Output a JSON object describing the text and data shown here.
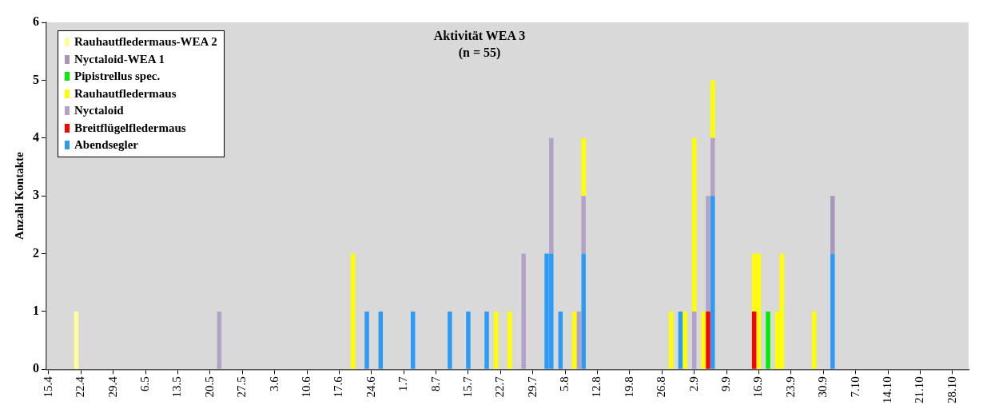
{
  "chart_data": {
    "type": "bar",
    "title": "Aktivität WEA 3",
    "subtitle": "(n = 55)",
    "ylabel": "Anzahl Kontakte",
    "stacked": true,
    "grid": false,
    "legend": "top left",
    "ylim": [
      0,
      6
    ],
    "yticks": [
      0,
      1,
      2,
      3,
      4,
      5,
      6
    ],
    "categories": [
      "15.4",
      null,
      null,
      null,
      null,
      null,
      null,
      "22.4",
      null,
      null,
      null,
      null,
      null,
      null,
      "29.4",
      null,
      null,
      null,
      null,
      null,
      null,
      "6.5",
      null,
      null,
      null,
      null,
      null,
      null,
      "13.5",
      null,
      null,
      null,
      null,
      null,
      null,
      "20.5",
      null,
      null,
      null,
      null,
      null,
      null,
      "27.5",
      null,
      null,
      null,
      null,
      null,
      null,
      "3.6",
      null,
      null,
      null,
      null,
      null,
      null,
      "10.6",
      null,
      null,
      null,
      null,
      null,
      null,
      "17.6",
      null,
      null,
      null,
      null,
      null,
      null,
      "24.6",
      null,
      null,
      null,
      null,
      null,
      null,
      "1.7",
      null,
      null,
      null,
      null,
      null,
      null,
      "8.7",
      null,
      null,
      null,
      null,
      null,
      null,
      "15.7",
      null,
      null,
      null,
      null,
      null,
      null,
      "22.7",
      null,
      null,
      null,
      null,
      null,
      null,
      "29.7",
      null,
      null,
      null,
      null,
      null,
      null,
      "5.8",
      null,
      null,
      null,
      null,
      null,
      null,
      "12.8",
      null,
      null,
      null,
      null,
      null,
      null,
      "19.8",
      null,
      null,
      null,
      null,
      null,
      null,
      "26.8",
      null,
      null,
      null,
      null,
      null,
      null,
      "2.9",
      null,
      null,
      null,
      null,
      null,
      null,
      "9.9",
      null,
      null,
      null,
      null,
      null,
      null,
      "16.9",
      null,
      null,
      null,
      null,
      null,
      null,
      "23.9",
      null,
      null,
      null,
      null,
      null,
      null,
      "30.9",
      null,
      null,
      null,
      null,
      null,
      null,
      "7.10",
      null,
      null,
      null,
      null,
      null,
      null,
      "14.10",
      null,
      null,
      null,
      null,
      null,
      null,
      "21.10",
      null,
      null,
      null,
      null,
      null,
      null,
      "28.10",
      null,
      null,
      null
    ],
    "series": [
      {
        "name": "Abendsegler",
        "color": "#2c9bf5",
        "values": [
          null,
          null,
          null,
          null,
          null,
          null,
          null,
          null,
          null,
          null,
          null,
          null,
          null,
          null,
          null,
          null,
          null,
          null,
          null,
          null,
          null,
          null,
          null,
          null,
          null,
          null,
          null,
          null,
          null,
          null,
          null,
          null,
          null,
          null,
          null,
          null,
          null,
          null,
          null,
          null,
          null,
          null,
          null,
          null,
          null,
          null,
          null,
          null,
          null,
          null,
          null,
          null,
          null,
          null,
          null,
          null,
          null,
          null,
          null,
          null,
          null,
          null,
          null,
          null,
          null,
          null,
          null,
          null,
          null,
          1,
          null,
          null,
          1,
          null,
          null,
          null,
          null,
          null,
          null,
          1,
          null,
          null,
          null,
          null,
          null,
          null,
          null,
          1,
          null,
          null,
          null,
          1,
          null,
          null,
          null,
          1,
          null,
          null,
          null,
          null,
          null,
          null,
          null,
          null,
          null,
          null,
          null,
          null,
          2,
          2,
          null,
          1,
          null,
          null,
          null,
          null,
          2,
          null,
          null,
          null,
          null,
          null,
          null,
          null,
          null,
          null,
          null,
          null,
          null,
          null,
          null,
          null,
          null,
          null,
          null,
          null,
          null,
          1,
          null,
          null,
          null,
          null,
          null,
          null,
          3,
          null,
          null,
          null,
          null,
          null,
          null,
          null,
          null,
          null,
          null,
          null,
          null,
          null,
          null,
          null,
          null,
          null,
          null,
          null,
          null,
          null,
          null,
          null,
          null,
          null,
          2,
          null,
          null,
          null,
          null,
          null,
          null,
          null,
          null,
          null,
          null,
          null,
          null,
          null,
          null,
          null,
          null,
          null,
          null,
          null,
          null,
          null,
          null,
          null,
          null,
          null,
          null,
          null,
          null,
          null
        ]
      },
      {
        "name": "Breitflügelfledermaus",
        "color": "#ff0000",
        "values": [
          null,
          null,
          null,
          null,
          null,
          null,
          null,
          null,
          null,
          null,
          null,
          null,
          null,
          null,
          null,
          null,
          null,
          null,
          null,
          null,
          null,
          null,
          null,
          null,
          null,
          null,
          null,
          null,
          null,
          null,
          null,
          null,
          null,
          null,
          null,
          null,
          null,
          null,
          null,
          null,
          null,
          null,
          null,
          null,
          null,
          null,
          null,
          null,
          null,
          null,
          null,
          null,
          null,
          null,
          null,
          null,
          null,
          null,
          null,
          null,
          null,
          null,
          null,
          null,
          null,
          null,
          null,
          null,
          null,
          null,
          null,
          null,
          null,
          null,
          null,
          null,
          null,
          null,
          null,
          null,
          null,
          null,
          null,
          null,
          null,
          null,
          null,
          null,
          null,
          null,
          null,
          null,
          null,
          null,
          null,
          null,
          null,
          null,
          null,
          null,
          null,
          null,
          null,
          null,
          null,
          null,
          null,
          null,
          null,
          null,
          null,
          null,
          null,
          null,
          null,
          null,
          null,
          null,
          null,
          null,
          null,
          null,
          null,
          null,
          null,
          null,
          null,
          null,
          null,
          null,
          null,
          null,
          null,
          null,
          null,
          null,
          null,
          null,
          null,
          null,
          null,
          null,
          null,
          1,
          null,
          null,
          null,
          null,
          null,
          null,
          null,
          null,
          null,
          1,
          null,
          null,
          null,
          null,
          null,
          null,
          null,
          null,
          null,
          null,
          null,
          null,
          null,
          null,
          null,
          null,
          null,
          null,
          null,
          null,
          null,
          null,
          null,
          null,
          null,
          null,
          null,
          null,
          null,
          null,
          null,
          null,
          null,
          null,
          null,
          null,
          null,
          null,
          null,
          null,
          null,
          null,
          null,
          null,
          null,
          null
        ]
      },
      {
        "name": "Nyctaloid",
        "color": "#b3a2c7",
        "values": [
          null,
          null,
          null,
          null,
          null,
          null,
          null,
          null,
          null,
          null,
          null,
          null,
          null,
          null,
          null,
          null,
          null,
          null,
          null,
          null,
          null,
          null,
          null,
          null,
          null,
          null,
          null,
          null,
          null,
          null,
          null,
          null,
          null,
          null,
          null,
          null,
          null,
          1,
          null,
          null,
          null,
          null,
          null,
          null,
          null,
          null,
          null,
          null,
          null,
          null,
          null,
          null,
          null,
          null,
          null,
          null,
          null,
          null,
          null,
          null,
          null,
          null,
          null,
          null,
          null,
          null,
          null,
          null,
          null,
          null,
          null,
          null,
          null,
          null,
          null,
          null,
          null,
          null,
          null,
          null,
          null,
          null,
          null,
          null,
          null,
          null,
          null,
          null,
          null,
          null,
          null,
          null,
          null,
          null,
          null,
          null,
          null,
          null,
          null,
          null,
          null,
          null,
          null,
          2,
          null,
          null,
          null,
          null,
          null,
          2,
          null,
          null,
          null,
          null,
          null,
          1,
          1,
          null,
          null,
          null,
          null,
          null,
          null,
          null,
          null,
          null,
          null,
          null,
          null,
          null,
          null,
          null,
          null,
          null,
          null,
          null,
          null,
          null,
          null,
          null,
          1,
          null,
          null,
          2,
          1,
          null,
          null,
          null,
          null,
          null,
          null,
          null,
          null,
          null,
          null,
          null,
          null,
          null,
          null,
          null,
          null,
          null,
          null,
          null,
          null,
          null,
          null,
          null,
          null,
          null,
          null,
          null,
          null,
          null,
          null,
          null,
          null,
          null,
          null,
          null,
          null,
          null,
          null,
          null,
          null,
          null,
          null,
          null,
          null,
          null,
          null,
          null,
          null,
          null,
          null,
          null,
          null,
          null,
          null,
          null
        ]
      },
      {
        "name": "Rauhautfledermaus",
        "color": "#ffff00",
        "values": [
          null,
          null,
          null,
          null,
          null,
          null,
          null,
          null,
          null,
          null,
          null,
          null,
          null,
          null,
          null,
          null,
          null,
          null,
          null,
          null,
          null,
          null,
          null,
          null,
          null,
          null,
          null,
          null,
          null,
          null,
          null,
          null,
          null,
          null,
          null,
          null,
          null,
          null,
          null,
          null,
          null,
          null,
          null,
          null,
          null,
          null,
          null,
          null,
          null,
          null,
          null,
          null,
          null,
          null,
          null,
          null,
          null,
          null,
          null,
          null,
          null,
          null,
          null,
          null,
          null,
          null,
          2,
          null,
          null,
          null,
          null,
          null,
          null,
          null,
          null,
          null,
          null,
          null,
          null,
          null,
          null,
          null,
          null,
          null,
          null,
          null,
          null,
          null,
          null,
          null,
          null,
          null,
          null,
          null,
          null,
          null,
          null,
          1,
          null,
          null,
          1,
          null,
          null,
          null,
          null,
          null,
          null,
          null,
          null,
          null,
          null,
          null,
          null,
          null,
          1,
          null,
          1,
          null,
          null,
          null,
          null,
          null,
          null,
          null,
          null,
          null,
          null,
          null,
          null,
          null,
          null,
          null,
          null,
          null,
          null,
          1,
          null,
          null,
          1,
          null,
          3,
          null,
          1,
          null,
          1,
          null,
          null,
          null,
          null,
          null,
          null,
          null,
          null,
          1,
          2,
          null,
          null,
          null,
          1,
          2,
          null,
          null,
          null,
          null,
          null,
          null,
          1,
          null,
          null,
          null,
          null,
          null,
          null,
          null,
          null,
          null,
          null,
          null,
          null,
          null,
          null,
          null,
          null,
          null,
          null,
          null,
          null,
          null,
          null,
          null,
          null,
          null,
          null,
          null,
          null,
          null,
          null,
          null,
          null,
          null
        ]
      },
      {
        "name": "Pipistrellus spec.",
        "color": "#00ee00",
        "values": [
          null,
          null,
          null,
          null,
          null,
          null,
          null,
          null,
          null,
          null,
          null,
          null,
          null,
          null,
          null,
          null,
          null,
          null,
          null,
          null,
          null,
          null,
          null,
          null,
          null,
          null,
          null,
          null,
          null,
          null,
          null,
          null,
          null,
          null,
          null,
          null,
          null,
          null,
          null,
          null,
          null,
          null,
          null,
          null,
          null,
          null,
          null,
          null,
          null,
          null,
          null,
          null,
          null,
          null,
          null,
          null,
          null,
          null,
          null,
          null,
          null,
          null,
          null,
          null,
          null,
          null,
          null,
          null,
          null,
          null,
          null,
          null,
          null,
          null,
          null,
          null,
          null,
          null,
          null,
          null,
          null,
          null,
          null,
          null,
          null,
          null,
          null,
          null,
          null,
          null,
          null,
          null,
          null,
          null,
          null,
          null,
          null,
          null,
          null,
          null,
          null,
          null,
          null,
          null,
          null,
          null,
          null,
          null,
          null,
          null,
          null,
          null,
          null,
          null,
          null,
          null,
          null,
          null,
          null,
          null,
          null,
          null,
          null,
          null,
          null,
          null,
          null,
          null,
          null,
          null,
          null,
          null,
          null,
          null,
          null,
          null,
          null,
          null,
          null,
          null,
          null,
          null,
          null,
          null,
          null,
          null,
          null,
          null,
          null,
          null,
          null,
          null,
          null,
          null,
          null,
          null,
          1,
          null,
          null,
          null,
          null,
          null,
          null,
          null,
          null,
          null,
          null,
          null,
          null,
          null,
          null,
          null,
          null,
          null,
          null,
          null,
          null,
          null,
          null,
          null,
          null,
          null,
          null,
          null,
          null,
          null,
          null,
          null,
          null,
          null,
          null,
          null,
          null,
          null,
          null,
          null,
          null,
          null,
          null,
          null
        ]
      },
      {
        "name": "Nyctaloid-WEA 1",
        "color": "#a897bd",
        "values": [
          null,
          null,
          null,
          null,
          null,
          null,
          null,
          null,
          null,
          null,
          null,
          null,
          null,
          null,
          null,
          null,
          null,
          null,
          null,
          null,
          null,
          null,
          null,
          null,
          null,
          null,
          null,
          null,
          null,
          null,
          null,
          null,
          null,
          null,
          null,
          null,
          null,
          null,
          null,
          null,
          null,
          null,
          null,
          null,
          null,
          null,
          null,
          null,
          null,
          null,
          null,
          null,
          null,
          null,
          null,
          null,
          null,
          null,
          null,
          null,
          null,
          null,
          null,
          null,
          null,
          null,
          null,
          null,
          null,
          null,
          null,
          null,
          null,
          null,
          null,
          null,
          null,
          null,
          null,
          null,
          null,
          null,
          null,
          null,
          null,
          null,
          null,
          null,
          null,
          null,
          null,
          null,
          null,
          null,
          null,
          null,
          null,
          null,
          null,
          null,
          null,
          null,
          null,
          null,
          null,
          null,
          null,
          null,
          null,
          null,
          null,
          null,
          null,
          null,
          null,
          null,
          null,
          null,
          null,
          null,
          null,
          null,
          null,
          null,
          null,
          null,
          null,
          null,
          null,
          null,
          null,
          null,
          null,
          null,
          null,
          null,
          null,
          null,
          null,
          null,
          null,
          null,
          null,
          null,
          null,
          null,
          null,
          null,
          null,
          null,
          null,
          null,
          null,
          null,
          null,
          null,
          null,
          null,
          null,
          null,
          null,
          null,
          null,
          null,
          null,
          null,
          null,
          null,
          null,
          null,
          1,
          null,
          null,
          null,
          null,
          null,
          null,
          null,
          null,
          null,
          null,
          null,
          null,
          null,
          null,
          null,
          null,
          null,
          null,
          null,
          null,
          null,
          null,
          null,
          null,
          null,
          null,
          null,
          null,
          null
        ]
      },
      {
        "name": "Rauhautfledermaus-WEA 2",
        "color": "#ffff99",
        "values": [
          null,
          null,
          null,
          null,
          null,
          null,
          1,
          null,
          null,
          null,
          null,
          null,
          null,
          null,
          null,
          null,
          null,
          null,
          null,
          null,
          null,
          null,
          null,
          null,
          null,
          null,
          null,
          null,
          null,
          null,
          null,
          null,
          null,
          null,
          null,
          null,
          null,
          null,
          null,
          null,
          null,
          null,
          null,
          null,
          null,
          null,
          null,
          null,
          null,
          null,
          null,
          null,
          null,
          null,
          null,
          null,
          null,
          null,
          null,
          null,
          null,
          null,
          null,
          null,
          null,
          null,
          null,
          null,
          null,
          null,
          null,
          null,
          null,
          null,
          null,
          null,
          null,
          null,
          null,
          null,
          null,
          null,
          null,
          null,
          null,
          null,
          null,
          null,
          null,
          null,
          null,
          null,
          null,
          null,
          null,
          null,
          null,
          null,
          null,
          null,
          null,
          null,
          null,
          null,
          null,
          null,
          null,
          null,
          null,
          null,
          null,
          null,
          null,
          null,
          null,
          null,
          null,
          null,
          null,
          null,
          null,
          null,
          null,
          null,
          null,
          null,
          null,
          null,
          null,
          null,
          null,
          null,
          null,
          null,
          null,
          null,
          null,
          null,
          null,
          null,
          null,
          null,
          null,
          null,
          null,
          null,
          null,
          null,
          null,
          null,
          null,
          null,
          null,
          null,
          null,
          null,
          null,
          null,
          null,
          null,
          null,
          null,
          null,
          null,
          null,
          null,
          null,
          null,
          null,
          null,
          null,
          null,
          null,
          null,
          null,
          null,
          null,
          null,
          null,
          null,
          null,
          null,
          null,
          null,
          null,
          null,
          null,
          null,
          null,
          null,
          null,
          null,
          null,
          null,
          null,
          null,
          null,
          null,
          null,
          null
        ]
      }
    ]
  }
}
